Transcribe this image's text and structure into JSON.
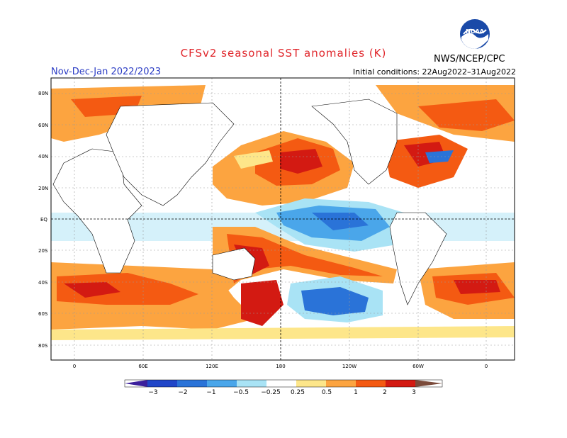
{
  "header": {
    "title": "CFSv2 seasonal SST anomalies (K)",
    "period": "Nov-Dec-Jan 2022/2023",
    "initial_conditions": "Initial conditions: 22Aug2022–31Aug2022",
    "agency": "NWS/NCEP/CPC",
    "logo_text": "NOAA"
  },
  "map": {
    "lat_labels": [
      "80N",
      "60N",
      "40N",
      "20N",
      "EQ",
      "20S",
      "40S",
      "60S",
      "80S"
    ],
    "lon_labels": [
      "0",
      "60E",
      "120E",
      "180",
      "120W",
      "60W",
      "0"
    ]
  },
  "colorbar": {
    "labels": [
      "−3",
      "−2",
      "−1",
      "−0.5",
      "−0.25",
      "0.25",
      "0.5",
      "1",
      "2",
      "3"
    ],
    "colors": [
      "#3b1f9c",
      "#2046c8",
      "#2a73d8",
      "#4aa6ea",
      "#a9e3f5",
      "#ffffff",
      "#fde68a",
      "#fca440",
      "#f45a12",
      "#d31a12",
      "#9d0a0a",
      "#7a4a3a"
    ]
  }
}
